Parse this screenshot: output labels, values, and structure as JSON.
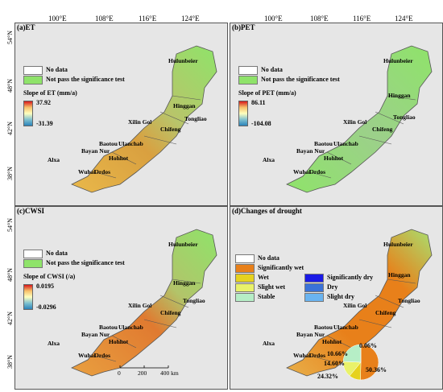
{
  "longitudes": [
    "100°E",
    "108°E",
    "116°E",
    "124°E"
  ],
  "latitudes": [
    "54°N",
    "48°N",
    "42°N",
    "38°N"
  ],
  "cities": {
    "hulunbeier": "Hulunbeier",
    "hinggan": "Hinggan",
    "tongliao": "Tongliao",
    "xilingol": "Xilin Gol",
    "chifeng": "Chifeng",
    "baotou": "Baotou",
    "ulanchab": "Ulanchab",
    "bayannur": "Bayan Nur",
    "hohhot": "Hohhot",
    "alxa": "Alxa",
    "wuhai": "Wuhai",
    "ordos": "Ordos"
  },
  "panels": {
    "et": {
      "title": "(a)ET",
      "legend": {
        "nodata": "No data",
        "nosig": "Not pass the significance test"
      },
      "bar_title": "Slope of ET (mm/a)",
      "max": "37.92",
      "min": "-31.39"
    },
    "pet": {
      "title": "(b)PET",
      "legend": {
        "nodata": "No data",
        "nosig": "Not pass the significance test"
      },
      "bar_title": "Slope of PET (mm/a)",
      "max": "86.11",
      "min": "-104.08"
    },
    "cwsi": {
      "title": "(c)CWSI",
      "legend": {
        "nodata": "No data",
        "nosig": "Not pass the significance test"
      },
      "bar_title": "Slope of CWSI (/a)",
      "max": "0.0195",
      "min": "-0.0296",
      "scale_labels": [
        "0",
        "200",
        "400 km"
      ]
    },
    "drought": {
      "title": "(d)Changes of drought",
      "legend": {
        "nodata": "No data",
        "sigwet": "Significantly wet",
        "wet": "Wet",
        "slightwet": "Slight wet",
        "stable": "Stable",
        "sigdry": "Significantly dry",
        "dry": "Dry",
        "slightdry": "Slight dry"
      },
      "pie": [
        {
          "label": "Significantly wet",
          "value": 50.36,
          "text": "50.36%",
          "color": "#e8801a"
        },
        {
          "label": "Wet",
          "value": 10.66,
          "text": "10.66%",
          "color": "#e6d21e"
        },
        {
          "label": "Slight wet",
          "value": 14.6,
          "text": "14.60%",
          "color": "#e9f26a"
        },
        {
          "label": "Stable",
          "value": 24.32,
          "text": "24.32%",
          "color": "#b6eec6"
        },
        {
          "label": "Slight dry",
          "value": 0.06,
          "text": "0.06%",
          "color": "#6ab4f0"
        }
      ]
    }
  },
  "colors": {
    "background": "#e6e6e6",
    "nosig": "#8fe36a",
    "nodata": "#ffffff",
    "sigwet": "#e8801a",
    "wet": "#e6d21e",
    "slightwet": "#e9f26a",
    "stable": "#b6eec6",
    "sigdry": "#1a1ae6",
    "dry": "#3a72d8",
    "slightdry": "#6ab4f0"
  }
}
